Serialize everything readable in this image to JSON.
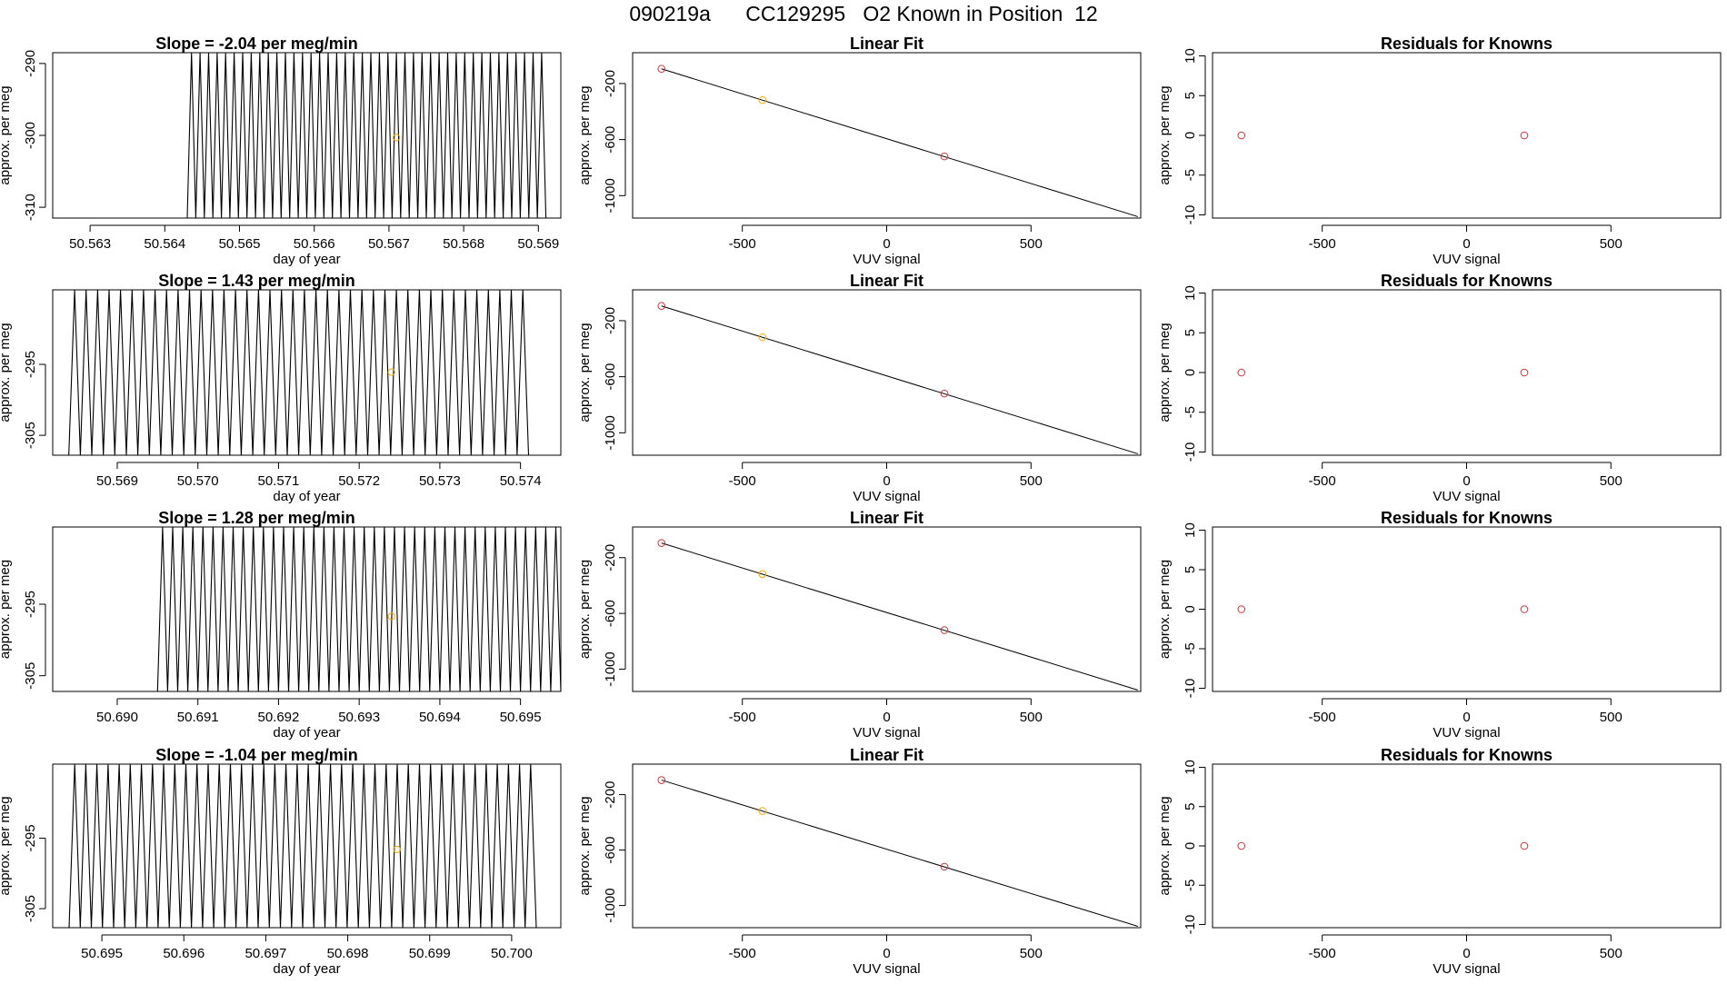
{
  "figure_title": "090219a      CC129295   O2 Known in Position  12",
  "colors": {
    "line": "#000000",
    "known_fit": "#cd3333",
    "unknown": "#ffa500",
    "axis": "#000000"
  },
  "chart_data": [
    {
      "type": "line",
      "row": 0,
      "panel": "timeseries",
      "title": "Slope =  -2.04  per meg/min",
      "xlabel": "day of year",
      "ylabel": "approx. per meg",
      "xlim": [
        50.5625,
        50.5693
      ],
      "ylim": [
        -311.5,
        -288.5
      ],
      "xticks": [
        "50.563",
        "50.564",
        "50.565",
        "50.566",
        "50.567",
        "50.568",
        "50.569"
      ],
      "yticks": [
        "-310",
        "-300",
        "-290"
      ],
      "trace_start": 50.5643,
      "trace_end": 50.5691,
      "trace_low": -311.5,
      "trace_high": -288.5,
      "trace_cycles": 42,
      "marker": {
        "x": 50.5671,
        "y": -300.3
      }
    },
    {
      "type": "scatter",
      "row": 0,
      "panel": "linear_fit",
      "title": "Linear Fit",
      "xlabel": "VUV signal",
      "ylabel": "approx. per meg",
      "xlim": [
        -880,
        880
      ],
      "ylim": [
        -1160,
        20
      ],
      "xticks": [
        "-500",
        "0",
        "500"
      ],
      "yticks": [
        "-1000",
        "-600",
        "-200"
      ],
      "fit_line": {
        "x": [
          -780,
          870
        ],
        "y": [
          -95,
          -1150
        ]
      },
      "points": [
        {
          "x": -780,
          "y": -95,
          "kind": "known"
        },
        {
          "x": 200,
          "y": -720,
          "kind": "known"
        },
        {
          "x": -430,
          "y": -318,
          "kind": "unknown"
        }
      ]
    },
    {
      "type": "scatter",
      "row": 0,
      "panel": "residuals",
      "title": "Residuals for Knowns",
      "xlabel": "VUV signal",
      "ylabel": "approx. per meg",
      "xlim": [
        -880,
        880
      ],
      "ylim": [
        -10.4,
        10.4
      ],
      "xticks": [
        "-500",
        "0",
        "500"
      ],
      "yticks": [
        "-10",
        "-5",
        "0",
        "5",
        "10"
      ],
      "points": [
        {
          "x": -780,
          "y": 0,
          "kind": "known"
        },
        {
          "x": 200,
          "y": 0,
          "kind": "known"
        }
      ]
    },
    {
      "type": "line",
      "row": 1,
      "panel": "timeseries",
      "title": "Slope =  1.43  per meg/min",
      "xlabel": "day of year",
      "ylabel": "approx. per meg",
      "xlim": [
        50.5682,
        50.5745
      ],
      "ylim": [
        -307.8,
        -284.5
      ],
      "xticks": [
        "50.569",
        "50.570",
        "50.571",
        "50.572",
        "50.573",
        "50.574"
      ],
      "yticks": [
        "-305",
        "-295"
      ],
      "trace_start": 50.5684,
      "trace_end": 50.5741,
      "trace_low": -307.8,
      "trace_high": -284.5,
      "trace_cycles": 40,
      "marker": {
        "x": 50.5724,
        "y": -296.1
      }
    },
    {
      "type": "scatter",
      "row": 1,
      "panel": "linear_fit",
      "title": "Linear Fit",
      "xlabel": "VUV signal",
      "ylabel": "approx. per meg",
      "xlim": [
        -880,
        880
      ],
      "ylim": [
        -1160,
        20
      ],
      "xticks": [
        "-500",
        "0",
        "500"
      ],
      "yticks": [
        "-1000",
        "-600",
        "-200"
      ],
      "fit_line": {
        "x": [
          -780,
          870
        ],
        "y": [
          -95,
          -1150
        ]
      },
      "points": [
        {
          "x": -780,
          "y": -95,
          "kind": "known"
        },
        {
          "x": 200,
          "y": -720,
          "kind": "known"
        },
        {
          "x": -430,
          "y": -318,
          "kind": "unknown"
        }
      ]
    },
    {
      "type": "scatter",
      "row": 1,
      "panel": "residuals",
      "title": "Residuals for Knowns",
      "xlabel": "VUV signal",
      "ylabel": "approx. per meg",
      "xlim": [
        -880,
        880
      ],
      "ylim": [
        -10.4,
        10.4
      ],
      "xticks": [
        "-500",
        "0",
        "500"
      ],
      "yticks": [
        "-10",
        "-5",
        "0",
        "5",
        "10"
      ],
      "points": [
        {
          "x": -780,
          "y": 0,
          "kind": "known"
        },
        {
          "x": 200,
          "y": 0,
          "kind": "known"
        }
      ]
    },
    {
      "type": "line",
      "row": 2,
      "panel": "timeseries",
      "title": "Slope =  1.28  per meg/min",
      "xlabel": "day of year",
      "ylabel": "approx. per meg",
      "xlim": [
        50.6892,
        50.6955
      ],
      "ylim": [
        -307.2,
        -284.2
      ],
      "xticks": [
        "50.690",
        "50.691",
        "50.692",
        "50.693",
        "50.694",
        "50.695"
      ],
      "yticks": [
        "-305",
        "-295"
      ],
      "trace_start": 50.6905,
      "trace_end": 50.6955,
      "trace_low": -307.2,
      "trace_high": -284.2,
      "trace_cycles": 40,
      "marker": {
        "x": 50.6934,
        "y": -296.7
      }
    },
    {
      "type": "scatter",
      "row": 2,
      "panel": "linear_fit",
      "title": "Linear Fit",
      "xlabel": "VUV signal",
      "ylabel": "approx. per meg",
      "xlim": [
        -880,
        880
      ],
      "ylim": [
        -1160,
        20
      ],
      "xticks": [
        "-500",
        "0",
        "500"
      ],
      "yticks": [
        "-1000",
        "-600",
        "-200"
      ],
      "fit_line": {
        "x": [
          -780,
          870
        ],
        "y": [
          -95,
          -1150
        ]
      },
      "points": [
        {
          "x": -780,
          "y": -95,
          "kind": "known"
        },
        {
          "x": 200,
          "y": -720,
          "kind": "known"
        },
        {
          "x": -430,
          "y": -318,
          "kind": "unknown"
        }
      ]
    },
    {
      "type": "scatter",
      "row": 2,
      "panel": "residuals",
      "title": "Residuals for Knowns",
      "xlabel": "VUV signal",
      "ylabel": "approx. per meg",
      "xlim": [
        -880,
        880
      ],
      "ylim": [
        -10.4,
        10.4
      ],
      "xticks": [
        "-500",
        "0",
        "500"
      ],
      "yticks": [
        "-10",
        "-5",
        "0",
        "5",
        "10"
      ],
      "points": [
        {
          "x": -780,
          "y": 0,
          "kind": "known"
        },
        {
          "x": 200,
          "y": 0,
          "kind": "known"
        }
      ]
    },
    {
      "type": "line",
      "row": 3,
      "panel": "timeseries",
      "title": "Slope =  -1.04  per meg/min",
      "xlabel": "day of year",
      "ylabel": "approx. per meg",
      "xlim": [
        50.6944,
        50.7006
      ],
      "ylim": [
        -307.7,
        -284.5
      ],
      "xticks": [
        "50.695",
        "50.696",
        "50.697",
        "50.698",
        "50.699",
        "50.700"
      ],
      "yticks": [
        "-305",
        "-295"
      ],
      "trace_start": 50.6946,
      "trace_end": 50.7003,
      "trace_low": -307.7,
      "trace_high": -284.5,
      "trace_cycles": 42,
      "marker": {
        "x": 50.6986,
        "y": -296.6
      }
    },
    {
      "type": "scatter",
      "row": 3,
      "panel": "linear_fit",
      "title": "Linear Fit",
      "xlabel": "VUV signal",
      "ylabel": "approx. per meg",
      "xlim": [
        -880,
        880
      ],
      "ylim": [
        -1160,
        20
      ],
      "xticks": [
        "-500",
        "0",
        "500"
      ],
      "yticks": [
        "-1000",
        "-600",
        "-200"
      ],
      "fit_line": {
        "x": [
          -780,
          870
        ],
        "y": [
          -95,
          -1150
        ]
      },
      "points": [
        {
          "x": -780,
          "y": -95,
          "kind": "known"
        },
        {
          "x": 200,
          "y": -720,
          "kind": "known"
        },
        {
          "x": -430,
          "y": -318,
          "kind": "unknown"
        }
      ]
    },
    {
      "type": "scatter",
      "row": 3,
      "panel": "residuals",
      "title": "Residuals for Knowns",
      "xlabel": "VUV signal",
      "ylabel": "approx. per meg",
      "xlim": [
        -880,
        880
      ],
      "ylim": [
        -10.4,
        10.4
      ],
      "xticks": [
        "-500",
        "0",
        "500"
      ],
      "yticks": [
        "-10",
        "-5",
        "0",
        "5",
        "10"
      ],
      "points": [
        {
          "x": -780,
          "y": 0,
          "kind": "known"
        },
        {
          "x": 200,
          "y": 0,
          "kind": "known"
        }
      ]
    }
  ]
}
